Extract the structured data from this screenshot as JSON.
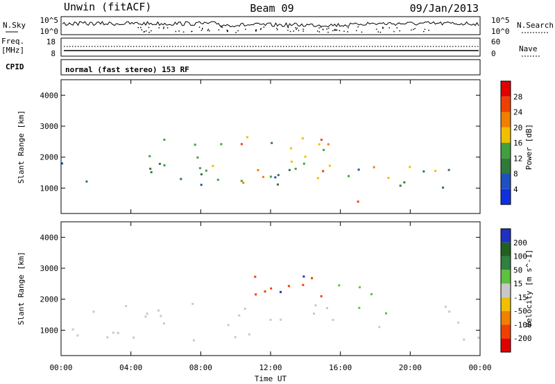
{
  "header": {
    "station": "Unwin (fitACF)",
    "beam": "Beam 09",
    "date": "09/Jan/2013"
  },
  "strip_panels": {
    "nsky_label": "N.Sky",
    "nsky_ticks": [
      "10^5",
      "10^0"
    ],
    "nsearch_label": "N.Search",
    "nsearch_ticks": [
      "10^5",
      "10^0"
    ],
    "freq_label_line1": "Freq.",
    "freq_label_line2": "[MHz]",
    "freq_ticks": [
      "18",
      "8"
    ],
    "nave_label": "Nave",
    "nave_ticks": [
      "60",
      "0"
    ],
    "cpid_label": "CPID",
    "cpid_text": "normal (fast stereo) 153 RF"
  },
  "colors": {
    "power": [
      "#1030e0",
      "#2050c0",
      "#307a3a",
      "#40a040",
      "#f0c000",
      "#f08000",
      "#f04000",
      "#e00000"
    ],
    "velocity": [
      "#e00000",
      "#f04000",
      "#f08000",
      "#f0c000",
      "#c8c8c8",
      "#60c040",
      "#308040",
      "#206020",
      "#2030c0"
    ]
  },
  "chart_data": [
    {
      "type": "heatmap",
      "name": "power",
      "ylabel": "Slant Range [km]",
      "xlabel": "Time UT",
      "xlim": [
        "00:00",
        "24:00"
      ],
      "ylim": [
        180,
        4500
      ],
      "yticks": [
        "4000",
        "3000",
        "2000",
        "1000"
      ],
      "xticks": [
        "00:00",
        "04:00",
        "08:00",
        "12:00",
        "16:00",
        "20:00",
        "00:00"
      ],
      "colorbar": {
        "label": "Power [dB]",
        "ticks": [
          "28",
          "24",
          "20",
          "16",
          "12",
          "8",
          "4"
        ],
        "range": [
          0,
          32
        ]
      },
      "regions": [
        {
          "t0": 0,
          "t1": 24,
          "r0": 1000,
          "r1": 1900,
          "value": 10
        },
        {
          "t0": 5,
          "t1": 16,
          "r0": 1200,
          "r1": 2600,
          "value": 16
        },
        {
          "t0": 10,
          "t1": 15.5,
          "r0": 1300,
          "r1": 2800,
          "value": 22
        },
        {
          "t0": 16.5,
          "t1": 22,
          "r0": 1200,
          "r1": 1900,
          "value": 20
        },
        {
          "t0": 16.3,
          "t1": 17.2,
          "r0": 300,
          "r1": 1000,
          "value": 28
        }
      ]
    },
    {
      "type": "heatmap",
      "name": "velocity",
      "ylabel": "Slant Range [km]",
      "xlabel": "Time UT",
      "xlim": [
        "00:00",
        "24:00"
      ],
      "ylim": [
        180,
        4500
      ],
      "yticks": [
        "4000",
        "3000",
        "2000",
        "1000"
      ],
      "xticks": [
        "00:00",
        "04:00",
        "08:00",
        "12:00",
        "16:00",
        "20:00",
        "00:00"
      ],
      "colorbar": {
        "label": "Velocity [m s^-1]",
        "ticks": [
          "200",
          "100",
          "50",
          "15",
          "-15",
          "-50",
          "-100",
          "-200"
        ],
        "range": [
          -250,
          250
        ]
      },
      "regions": [
        {
          "t0": 0,
          "t1": 24,
          "r0": 700,
          "r1": 1900,
          "value": 0
        },
        {
          "t0": 9,
          "t1": 15,
          "r0": 1700,
          "r1": 2900,
          "value": -150
        },
        {
          "t0": 12,
          "t1": 14.5,
          "r0": 2100,
          "r1": 2800,
          "value": 200
        },
        {
          "t0": 15.5,
          "t1": 19,
          "r0": 1200,
          "r1": 2600,
          "value": 40
        }
      ]
    }
  ]
}
